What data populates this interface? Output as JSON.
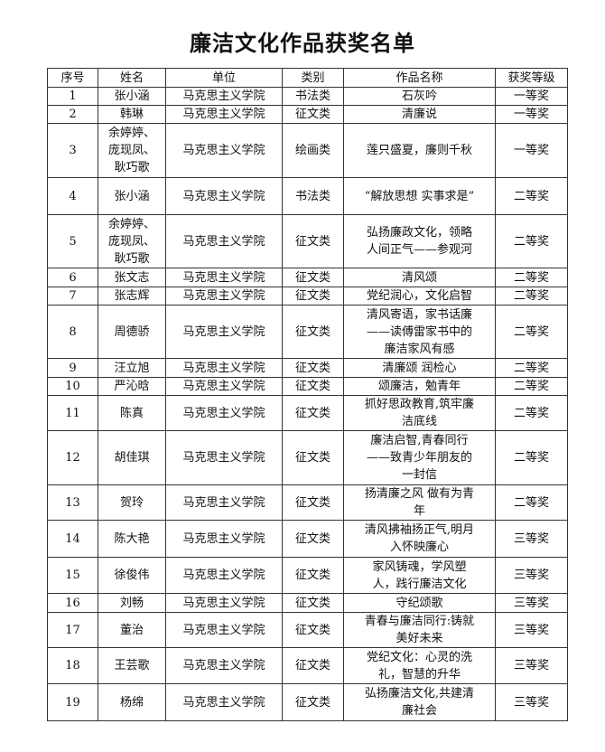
{
  "title": "廉洁文化作品获奖名单",
  "columns": [
    "序号",
    "姓名",
    "单位",
    "类别",
    "作品名称",
    "获奖等级"
  ],
  "rows": [
    {
      "no": "1",
      "name": "张小涵",
      "unit": "马克思主义学院",
      "category": "书法类",
      "work": "石灰吟",
      "award": "一等奖"
    },
    {
      "no": "2",
      "name": "韩琳",
      "unit": "马克思主义学院",
      "category": "征文类",
      "work": "清廉说",
      "award": "一等奖"
    },
    {
      "no": "3",
      "name": "余婷婷、庞现凤、耿巧歌",
      "unit": "马克思主义学院",
      "category": "绘画类",
      "work": "莲只盛夏，廉则千秋",
      "award": "一等奖"
    },
    {
      "no": "4",
      "name": "张小涵",
      "unit": "马克思主义学院",
      "category": "书法类",
      "work": "“解放思想 实事求是”",
      "award": "二等奖"
    },
    {
      "no": "5",
      "name": "余婷婷、庞现凤、耿巧歌",
      "unit": "马克思主义学院",
      "category": "征文类",
      "work": "弘扬廉政文化，领略人间正气——参观河",
      "award": "二等奖"
    },
    {
      "no": "6",
      "name": "张文志",
      "unit": "马克思主义学院",
      "category": "征文类",
      "work": "清风颂",
      "award": "二等奖"
    },
    {
      "no": "7",
      "name": "张志辉",
      "unit": "马克思主义学院",
      "category": "征文类",
      "work": "党纪润心，文化启智",
      "award": "二等奖"
    },
    {
      "no": "8",
      "name": "周德骄",
      "unit": "马克思主义学院",
      "category": "征文类",
      "work": "清风寄语，家书话廉——读傅雷家书中的廉洁家风有感",
      "award": "二等奖"
    },
    {
      "no": "9",
      "name": "汪立旭",
      "unit": "马克思主义学院",
      "category": "征文类",
      "work": "清廉颂 润检心",
      "award": "二等奖"
    },
    {
      "no": "10",
      "name": "严沁晗",
      "unit": "马克思主义学院",
      "category": "征文类",
      "work": "颂廉洁，勉青年",
      "award": "二等奖"
    },
    {
      "no": "11",
      "name": "陈真",
      "unit": "马克思主义学院",
      "category": "征文类",
      "work": "抓好思政教育,筑牢廉洁底线",
      "award": "二等奖"
    },
    {
      "no": "12",
      "name": "胡佳琪",
      "unit": "马克思主义学院",
      "category": "征文类",
      "work": "廉洁启智,青春同行——致青少年朋友的一封信",
      "award": "二等奖"
    },
    {
      "no": "13",
      "name": "贺玲",
      "unit": "马克思主义学院",
      "category": "征文类",
      "work": "扬清廉之风 做有为青年",
      "award": "二等奖"
    },
    {
      "no": "14",
      "name": "陈大艳",
      "unit": "马克思主义学院",
      "category": "征文类",
      "work": "清风拂袖扬正气,明月入怀映廉心",
      "award": "三等奖"
    },
    {
      "no": "15",
      "name": "徐俊伟",
      "unit": "马克思主义学院",
      "category": "征文类",
      "work": "家风铸魂，学风塑人，践行廉洁文化",
      "award": "三等奖"
    },
    {
      "no": "16",
      "name": "刘畅",
      "unit": "马克思主义学院",
      "category": "征文类",
      "work": "守纪颂歌",
      "award": "三等奖"
    },
    {
      "no": "17",
      "name": "董治",
      "unit": "马克思主义学院",
      "category": "征文类",
      "work": "青春与廉洁同行:铸就美好未来",
      "award": "三等奖"
    },
    {
      "no": "18",
      "name": "王芸歌",
      "unit": "马克思主义学院",
      "category": "征文类",
      "work": "党纪文化：心灵的洗礼，智慧的升华",
      "award": "三等奖"
    },
    {
      "no": "19",
      "name": "杨绵",
      "unit": "马克思主义学院",
      "category": "征文类",
      "work": "弘扬廉洁文化,共建清廉社会",
      "award": "三等奖"
    }
  ]
}
